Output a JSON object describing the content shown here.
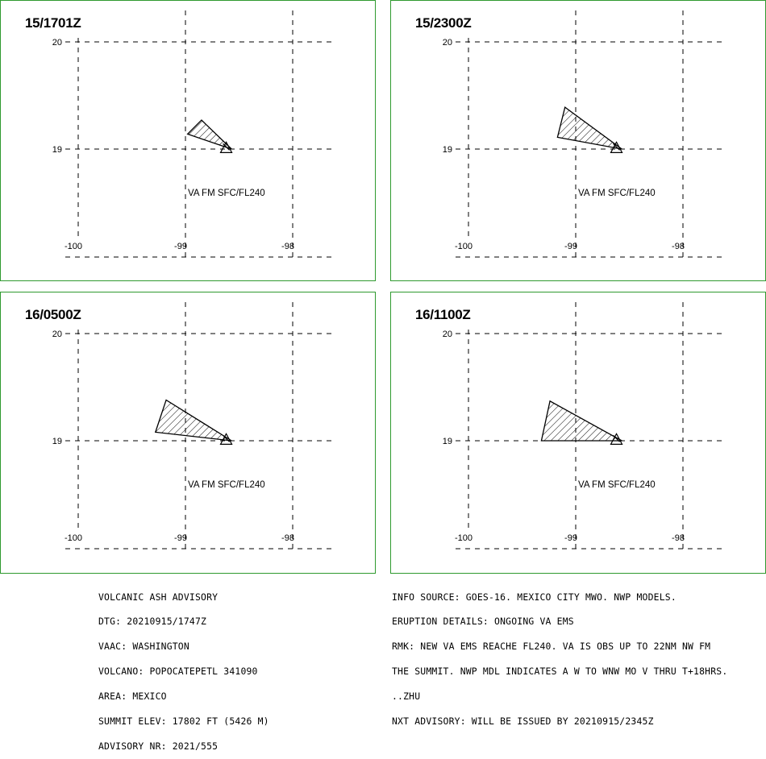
{
  "panels": [
    {
      "title": "15/1701Z",
      "label": "VA FM SFC/FL240",
      "polygon": [
        [
          -98.57,
          19.0
        ],
        [
          -98.85,
          19.27
        ],
        [
          -98.98,
          19.14
        ]
      ]
    },
    {
      "title": "15/2300Z",
      "label": "VA FM SFC/FL240",
      "polygon": [
        [
          -98.57,
          19.0
        ],
        [
          -99.1,
          19.39
        ],
        [
          -99.17,
          19.11
        ]
      ]
    },
    {
      "title": "16/0500Z",
      "label": "VA FM SFC/FL240",
      "polygon": [
        [
          -98.57,
          19.0
        ],
        [
          -99.18,
          19.38
        ],
        [
          -99.28,
          19.08
        ]
      ]
    },
    {
      "title": "16/1100Z",
      "label": "VA FM SFC/FL240",
      "polygon": [
        [
          -98.57,
          19.0
        ],
        [
          -99.24,
          19.37
        ],
        [
          -99.32,
          19.0
        ]
      ]
    }
  ],
  "axes": {
    "lon_ticks": [
      -100,
      -99,
      -98
    ],
    "lat_ticks": [
      20,
      19
    ],
    "lon_labels": [
      "-100",
      "-99",
      "-98"
    ],
    "lat_labels": [
      "20",
      "19"
    ]
  },
  "volcano": {
    "lon": -98.62,
    "lat": 19.02,
    "symbol": "volcano-triangle"
  },
  "colors": {
    "frame": "#2f9a2f",
    "lines": "#000000"
  },
  "advisory_left": [
    "VOLCANIC ASH ADVISORY",
    "DTG: 20210915/1747Z",
    "VAAC: WASHINGTON",
    "VOLCANO: POPOCATEPETL 341090",
    "AREA: MEXICO",
    "SUMMIT ELEV: 17802 FT (5426 M)",
    "ADVISORY NR: 2021/555"
  ],
  "advisory_right": [
    "INFO SOURCE: GOES-16. MEXICO CITY MWO. NWP MODELS.",
    "ERUPTION DETAILS: ONGOING VA EMS",
    "RMK: NEW VA EMS REACHE FL240. VA IS OBS UP TO 22NM NW FM",
    "THE SUMMIT. NWP MDL INDICATES A W TO WNW MO V THRU T+18HRS.",
    "..ZHU",
    "NXT ADVISORY: WILL BE ISSUED BY 20210915/2345Z"
  ]
}
